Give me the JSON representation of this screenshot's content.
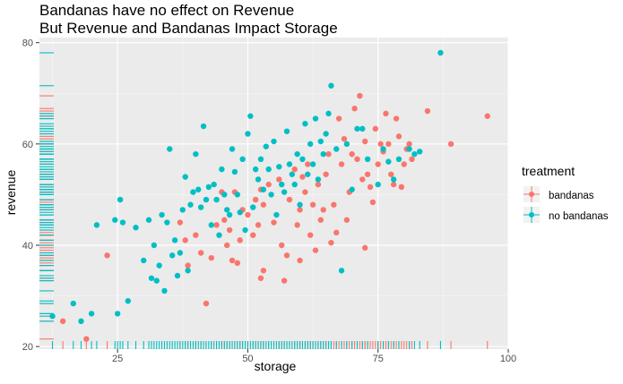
{
  "chart_data": {
    "type": "scatter",
    "title_lines": [
      "Bandanas have no effect on Revenue",
      "But Revenue and Bandanas Impact Storage"
    ],
    "xlabel": "storage",
    "ylabel": "revenue",
    "xlim": [
      10,
      100
    ],
    "ylim": [
      19.5,
      81
    ],
    "x_ticks": [
      25,
      50,
      75,
      100
    ],
    "y_ticks": [
      20,
      40,
      60,
      80
    ],
    "grid": true,
    "rug": "x-bottom and y-left",
    "legend": {
      "title": "treatment",
      "position": "right",
      "items": [
        {
          "label": "bandanas",
          "color": "#F8766D"
        },
        {
          "label": "no bandanas",
          "color": "#00BFC4"
        }
      ]
    },
    "series": [
      {
        "name": "bandanas",
        "color": "#F8766D",
        "points": [
          [
            14.5,
            25
          ],
          [
            19,
            21.5
          ],
          [
            23,
            38
          ],
          [
            37,
            44.5
          ],
          [
            38,
            41
          ],
          [
            38.5,
            36
          ],
          [
            40,
            42
          ],
          [
            41,
            38.5
          ],
          [
            42,
            28.5
          ],
          [
            43,
            37.5
          ],
          [
            44,
            44
          ],
          [
            45,
            50.5
          ],
          [
            45.5,
            45
          ],
          [
            46,
            40
          ],
          [
            46.5,
            43
          ],
          [
            47,
            37
          ],
          [
            47.5,
            50.5
          ],
          [
            48,
            36.5
          ],
          [
            48.5,
            41
          ],
          [
            49,
            47
          ],
          [
            50,
            46
          ],
          [
            51,
            42
          ],
          [
            51.5,
            49
          ],
          [
            52,
            44
          ],
          [
            52.5,
            51
          ],
          [
            53,
            48
          ],
          [
            54,
            52
          ],
          [
            55,
            44.5
          ],
          [
            56,
            53
          ],
          [
            56.5,
            40
          ],
          [
            57,
            33
          ],
          [
            57.5,
            38
          ],
          [
            58,
            49
          ],
          [
            59,
            55
          ],
          [
            59.5,
            44
          ],
          [
            60,
            47
          ],
          [
            60.5,
            53.5
          ],
          [
            61,
            50.5
          ],
          [
            61.5,
            56
          ],
          [
            62,
            42
          ],
          [
            62.5,
            48
          ],
          [
            63,
            39
          ],
          [
            63.5,
            52
          ],
          [
            64,
            45
          ],
          [
            64.5,
            47
          ],
          [
            65,
            54
          ],
          [
            65.5,
            58
          ],
          [
            66,
            40.5
          ],
          [
            66.5,
            48
          ],
          [
            67,
            42.5
          ],
          [
            67.5,
            65
          ],
          [
            68,
            56
          ],
          [
            68.5,
            61
          ],
          [
            69,
            45
          ],
          [
            69.5,
            50.5
          ],
          [
            70,
            58
          ],
          [
            70.5,
            67
          ],
          [
            71,
            57
          ],
          [
            71.5,
            69.5
          ],
          [
            72,
            53
          ],
          [
            72.5,
            60.5
          ],
          [
            73,
            54
          ],
          [
            73.5,
            51.5
          ],
          [
            74,
            48.5
          ],
          [
            74.5,
            63
          ],
          [
            75,
            56
          ],
          [
            75.5,
            60
          ],
          [
            76,
            58.5
          ],
          [
            76.5,
            66
          ],
          [
            77,
            60
          ],
          [
            77.5,
            54
          ],
          [
            78,
            52
          ],
          [
            78.5,
            65
          ],
          [
            79,
            61.5
          ],
          [
            79.5,
            51.5
          ],
          [
            80,
            56
          ],
          [
            80.5,
            59
          ],
          [
            81,
            60
          ],
          [
            81.5,
            57
          ],
          [
            84.5,
            66.5
          ],
          [
            89,
            60
          ],
          [
            96,
            65.5
          ],
          [
            72.5,
            39.5
          ],
          [
            52.5,
            33.5
          ],
          [
            60,
            37
          ],
          [
            53,
            35
          ]
        ]
      },
      {
        "name": "no bandanas",
        "color": "#00BFC4",
        "points": [
          [
            12.5,
            26
          ],
          [
            16.5,
            28.5
          ],
          [
            18,
            25
          ],
          [
            20,
            26.5
          ],
          [
            21,
            44
          ],
          [
            24.5,
            45
          ],
          [
            25,
            26.5
          ],
          [
            25.5,
            49
          ],
          [
            26,
            44.5
          ],
          [
            27,
            29
          ],
          [
            28.5,
            43.5
          ],
          [
            30,
            37
          ],
          [
            31,
            45
          ],
          [
            31.5,
            33.5
          ],
          [
            32,
            40
          ],
          [
            32.5,
            33
          ],
          [
            33,
            36
          ],
          [
            33.5,
            46
          ],
          [
            34,
            31
          ],
          [
            34.5,
            44.5
          ],
          [
            35,
            59
          ],
          [
            35.5,
            38
          ],
          [
            36,
            41
          ],
          [
            36.5,
            34
          ],
          [
            37,
            38.5
          ],
          [
            37.5,
            47
          ],
          [
            38,
            53.5
          ],
          [
            38.5,
            35
          ],
          [
            39,
            48
          ],
          [
            39.5,
            50.5
          ],
          [
            40,
            58
          ],
          [
            40.5,
            51
          ],
          [
            41,
            47.5
          ],
          [
            41.5,
            63.5
          ],
          [
            42,
            49
          ],
          [
            42.5,
            51.5
          ],
          [
            43,
            44
          ],
          [
            43.5,
            52
          ],
          [
            44,
            49
          ],
          [
            44.5,
            42
          ],
          [
            45,
            55
          ],
          [
            45.5,
            50
          ],
          [
            46,
            47
          ],
          [
            46.5,
            46
          ],
          [
            47,
            59
          ],
          [
            47.5,
            54.5
          ],
          [
            48,
            50
          ],
          [
            48.5,
            46.5
          ],
          [
            49,
            57
          ],
          [
            49.5,
            43
          ],
          [
            50,
            62
          ],
          [
            50.5,
            65.5
          ],
          [
            51,
            47.5
          ],
          [
            51.5,
            55
          ],
          [
            52,
            53
          ],
          [
            52.5,
            57
          ],
          [
            53,
            51
          ],
          [
            53.5,
            59.5
          ],
          [
            54,
            55
          ],
          [
            54.5,
            50
          ],
          [
            55,
            60.5
          ],
          [
            55.5,
            46
          ],
          [
            56,
            55.5
          ],
          [
            56.5,
            52
          ],
          [
            57,
            50.5
          ],
          [
            57.5,
            62.5
          ],
          [
            58,
            56
          ],
          [
            58.5,
            54
          ],
          [
            59,
            52
          ],
          [
            59.5,
            58
          ],
          [
            60,
            48
          ],
          [
            60.5,
            57
          ],
          [
            61,
            64
          ],
          [
            61.5,
            54
          ],
          [
            62,
            60
          ],
          [
            62.5,
            56
          ],
          [
            63,
            65
          ],
          [
            63.5,
            53
          ],
          [
            64,
            60.5
          ],
          [
            64.5,
            58
          ],
          [
            65,
            62
          ],
          [
            65.5,
            66
          ],
          [
            66,
            71.5
          ],
          [
            67,
            59
          ],
          [
            68,
            35
          ],
          [
            69,
            60
          ],
          [
            70,
            51
          ],
          [
            71,
            63
          ],
          [
            72,
            63
          ],
          [
            73,
            57
          ],
          [
            75,
            52
          ],
          [
            76,
            59
          ],
          [
            77,
            56.5
          ],
          [
            78,
            53
          ],
          [
            79,
            57
          ],
          [
            81,
            59
          ],
          [
            82,
            58
          ],
          [
            83,
            58.5
          ],
          [
            87,
            78
          ]
        ]
      }
    ]
  }
}
